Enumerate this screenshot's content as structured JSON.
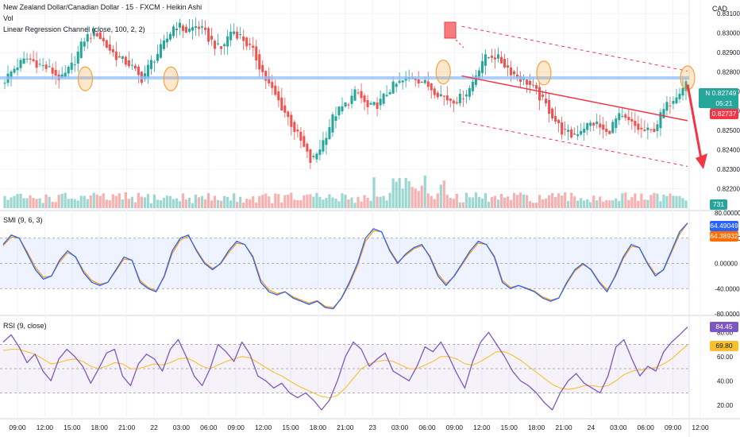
{
  "header": {
    "symbol_title": "New Zealand Dollar/Canadian Dollar · 15 · FXCM · Heikin Ashi",
    "volume_label": "Vol",
    "indicator_label": "Linear Regression Channel (close, 100, 2, 2)",
    "currency": "CAD"
  },
  "price_tags": {
    "symbol": "NZDCAD",
    "last_price": "0.82749",
    "countdown": "05:21",
    "bid_price": "0.82737",
    "volume": "731"
  },
  "smi_tags": {
    "smi": "64.49049",
    "signal": "64.38932"
  },
  "rsi_tags": {
    "rsi": "84.45",
    "ma": "69.80"
  },
  "colors": {
    "bull": "#26a69a",
    "bear": "#ef5350",
    "horizontal_level": "#90bff9",
    "regression": "#f23645",
    "highlight": "#f7a23a",
    "smi_line": "#2962ff",
    "smi_signal": "#ff9800",
    "rsi_line": "#7e57c2",
    "rsi_ma": "#fbc02d",
    "last_tag": "#26a69a",
    "bid_tag": "#f23645",
    "smi_tag": "#2962ff",
    "signal_tag": "#ff6d00",
    "rsi_tag": "#7e57c2",
    "rsi_ma_tag": "#fbc02d"
  },
  "chart_data": [
    {
      "type": "candlestick",
      "title": "New Zealand Dollar/Canadian Dollar · 15 · FXCM · Heikin Ashi",
      "ylim": [
        0.821,
        0.8315
      ],
      "y_ticks": [
        "0.83100",
        "0.83000",
        "0.82900",
        "0.82800",
        "0.82700",
        "0.82600",
        "0.82500",
        "0.82400",
        "0.82300",
        "0.82200"
      ],
      "x_ticks": [
        "09:00",
        "12:00",
        "15:00",
        "18:00",
        "21:00",
        "22",
        "03:00",
        "06:00",
        "09:00",
        "12:00",
        "15:00",
        "18:00",
        "21:00",
        "23",
        "03:00",
        "06:00",
        "09:00",
        "12:00",
        "15:00",
        "18:00",
        "21:00",
        "24",
        "03:00",
        "06:00",
        "09:00",
        "12:00"
      ],
      "close_path": [
        {
          "x": "09:00",
          "y": 0.8276
        },
        {
          "x": "10:00",
          "y": 0.8283
        },
        {
          "x": "12:00",
          "y": 0.8287
        },
        {
          "x": "13:00",
          "y": 0.8284
        },
        {
          "x": "15:00",
          "y": 0.8281
        },
        {
          "x": "16:00",
          "y": 0.8276
        },
        {
          "x": "18:00",
          "y": 0.8284
        },
        {
          "x": "20:00",
          "y": 0.8297
        },
        {
          "x": "21:00",
          "y": 0.8301
        },
        {
          "x": "22:00",
          "y": 0.8293
        },
        {
          "x": "23:00",
          "y": 0.8287
        },
        {
          "x": "00:30",
          "y": 0.8284
        },
        {
          "x": "01:00",
          "y": 0.8276
        },
        {
          "x": "02:00",
          "y": 0.8286
        },
        {
          "x": "03:00",
          "y": 0.8294
        },
        {
          "x": "04:00",
          "y": 0.8305
        },
        {
          "x": "06:00",
          "y": 0.8301
        },
        {
          "x": "07:00",
          "y": 0.8304
        },
        {
          "x": "08:00",
          "y": 0.8297
        },
        {
          "x": "09:00",
          "y": 0.8291
        },
        {
          "x": "10:30",
          "y": 0.8302
        },
        {
          "x": "12:00",
          "y": 0.8297
        },
        {
          "x": "13:30",
          "y": 0.8289
        },
        {
          "x": "14:00",
          "y": 0.8276
        },
        {
          "x": "15:00",
          "y": 0.8266
        },
        {
          "x": "17:00",
          "y": 0.8256
        },
        {
          "x": "18:00",
          "y": 0.8245
        },
        {
          "x": "19:30",
          "y": 0.8233
        },
        {
          "x": "20:00",
          "y": 0.8244
        },
        {
          "x": "21:00",
          "y": 0.8258
        },
        {
          "x": "22:00",
          "y": 0.8263
        },
        {
          "x": "23:00",
          "y": 0.827
        },
        {
          "x": "01:00",
          "y": 0.8261
        },
        {
          "x": "03:00",
          "y": 0.8264
        },
        {
          "x": "04:30",
          "y": 0.8272
        },
        {
          "x": "06:00",
          "y": 0.8275
        },
        {
          "x": "07:00",
          "y": 0.8278
        },
        {
          "x": "08:00",
          "y": 0.8274
        },
        {
          "x": "09:00",
          "y": 0.827
        },
        {
          "x": "10:30",
          "y": 0.8266
        },
        {
          "x": "12:00",
          "y": 0.8266
        },
        {
          "x": "13:00",
          "y": 0.8272
        },
        {
          "x": "14:00",
          "y": 0.8286
        },
        {
          "x": "15:00",
          "y": 0.8289
        },
        {
          "x": "16:00",
          "y": 0.8284
        },
        {
          "x": "17:00",
          "y": 0.8278
        },
        {
          "x": "18:00",
          "y": 0.8275
        },
        {
          "x": "19:00",
          "y": 0.8268
        },
        {
          "x": "20:00",
          "y": 0.826
        },
        {
          "x": "21:00",
          "y": 0.825
        },
        {
          "x": "22:00",
          "y": 0.8247
        },
        {
          "x": "23:00",
          "y": 0.8252
        },
        {
          "x": "01:00",
          "y": 0.8254
        },
        {
          "x": "03:00",
          "y": 0.8248
        },
        {
          "x": "04:00",
          "y": 0.8257
        },
        {
          "x": "05:00",
          "y": 0.8254
        },
        {
          "x": "06:00",
          "y": 0.825
        },
        {
          "x": "07:00",
          "y": 0.8249
        },
        {
          "x": "08:00",
          "y": 0.826
        },
        {
          "x": "09:00",
          "y": 0.8268
        },
        {
          "x": "10:00",
          "y": 0.8275
        }
      ],
      "horizontal_level": 0.8277,
      "regression_channel": {
        "start": {
          "x": "06:00",
          "y": 0.8278
        },
        "end": {
          "x": "10:00",
          "y": 0.8255
        },
        "upper_end": 0.82805,
        "lower_end": 0.82315
      },
      "highlighted_points": [
        {
          "x": "15:00",
          "y": 0.82765
        },
        {
          "x": "01:00",
          "y": 0.82765
        },
        {
          "x": "06:00",
          "y": 0.828
        },
        {
          "x": "18:00",
          "y": 0.82795
        },
        {
          "x": "09:00",
          "y": 0.8277
        }
      ],
      "arrow": {
        "from": {
          "x": "09:00",
          "y": 0.82735
        },
        "to": {
          "x": "10:00",
          "y": 0.823
        }
      }
    },
    {
      "type": "line",
      "title": "SMI (9, 6, 3)",
      "ylim": [
        -80,
        80
      ],
      "y_ticks": [
        "80.00000",
        "40.00000",
        "0.00000",
        "-40.00000",
        "-80.00000"
      ],
      "levels": [
        40,
        -40
      ],
      "series": [
        {
          "name": "SMI",
          "values": [
            30,
            45,
            40,
            15,
            -10,
            -25,
            -20,
            5,
            20,
            10,
            -15,
            -30,
            -35,
            -30,
            -10,
            10,
            5,
            -30,
            -40,
            -45,
            -20,
            20,
            40,
            45,
            20,
            0,
            -10,
            0,
            20,
            35,
            30,
            10,
            -30,
            -45,
            -50,
            -45,
            -55,
            -60,
            -65,
            -60,
            -70,
            -72,
            -55,
            -30,
            0,
            40,
            55,
            50,
            20,
            0,
            15,
            25,
            30,
            10,
            -20,
            -35,
            -20,
            0,
            20,
            35,
            30,
            10,
            -30,
            -40,
            -35,
            -40,
            -45,
            -55,
            -60,
            -55,
            -30,
            -10,
            0,
            -10,
            -30,
            -45,
            -20,
            10,
            30,
            25,
            0,
            -20,
            -10,
            20,
            50,
            64
          ]
        },
        {
          "name": "Signal",
          "values": [
            28,
            42,
            40,
            18,
            -6,
            -22,
            -20,
            2,
            17,
            11,
            -12,
            -27,
            -33,
            -30,
            -12,
            7,
            5,
            -27,
            -38,
            -43,
            -22,
            16,
            37,
            43,
            22,
            2,
            -8,
            -1,
            17,
            32,
            30,
            12,
            -26,
            -42,
            -48,
            -45,
            -53,
            -58,
            -63,
            -59,
            -68,
            -70,
            -56,
            -33,
            -4,
            35,
            52,
            50,
            22,
            2,
            13,
            23,
            28,
            12,
            -17,
            -32,
            -21,
            -2,
            17,
            32,
            30,
            12,
            -27,
            -38,
            -35,
            -39,
            -44,
            -53,
            -58,
            -55,
            -32,
            -12,
            -2,
            -9,
            -28,
            -42,
            -22,
            7,
            27,
            25,
            2,
            -17,
            -11,
            17,
            46,
            64
          ]
        }
      ]
    },
    {
      "type": "line",
      "title": "RSI (9, close)",
      "ylim": [
        10,
        92
      ],
      "y_ticks": [
        "80.00",
        "60.00",
        "40.00",
        "20.00"
      ],
      "levels": [
        70,
        50,
        30
      ],
      "series": [
        {
          "name": "RSI",
          "values": [
            72,
            78,
            68,
            55,
            62,
            48,
            40,
            58,
            66,
            60,
            52,
            38,
            50,
            63,
            66,
            44,
            36,
            54,
            62,
            58,
            48,
            66,
            74,
            60,
            44,
            36,
            50,
            70,
            64,
            56,
            72,
            62,
            44,
            40,
            34,
            38,
            30,
            26,
            30,
            24,
            16,
            24,
            40,
            60,
            72,
            66,
            52,
            58,
            63,
            48,
            44,
            40,
            52,
            68,
            64,
            72,
            60,
            46,
            34,
            56,
            72,
            80,
            70,
            60,
            48,
            40,
            36,
            30,
            22,
            16,
            30,
            40,
            46,
            38,
            34,
            30,
            44,
            68,
            74,
            58,
            44,
            52,
            48,
            64,
            72,
            78,
            84.45
          ]
        },
        {
          "name": "MA",
          "values": [
            65,
            66,
            66,
            64,
            62,
            58,
            54,
            55,
            57,
            58,
            56,
            52,
            50,
            52,
            55,
            54,
            50,
            50,
            52,
            54,
            53,
            55,
            58,
            59,
            56,
            52,
            50,
            53,
            56,
            58,
            60,
            59,
            55,
            51,
            47,
            44,
            40,
            36,
            33,
            30,
            27,
            26,
            28,
            34,
            42,
            50,
            54,
            56,
            57,
            56,
            53,
            50,
            50,
            53,
            56,
            60,
            60,
            58,
            54,
            53,
            56,
            60,
            64,
            64,
            61,
            57,
            52,
            47,
            42,
            37,
            34,
            33,
            34,
            36,
            36,
            35,
            36,
            40,
            45,
            48,
            49,
            50,
            51,
            54,
            58,
            64,
            69.8
          ]
        }
      ]
    }
  ]
}
